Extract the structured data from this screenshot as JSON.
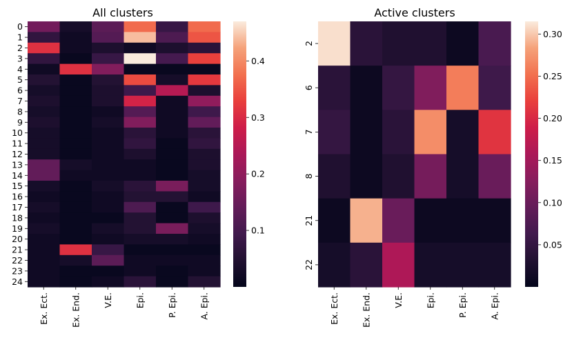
{
  "chart_data": [
    {
      "type": "heatmap",
      "title": "All clusters",
      "x_categories": [
        "Ex. Ect.",
        "Ex. End.",
        "V.E.",
        "Epi.",
        "P. Epi.",
        "A. Epi."
      ],
      "y_categories": [
        "0",
        "1",
        "2",
        "3",
        "4",
        "5",
        "6",
        "7",
        "8",
        "9",
        "10",
        "11",
        "12",
        "13",
        "14",
        "15",
        "16",
        "17",
        "18",
        "19",
        "20",
        "21",
        "22",
        "23",
        "24"
      ],
      "values": [
        [
          0.16,
          0.03,
          0.13,
          0.37,
          0.08,
          0.37
        ],
        [
          0.07,
          0.02,
          0.12,
          0.44,
          0.11,
          0.35
        ],
        [
          0.31,
          0.02,
          0.04,
          0.02,
          0.04,
          0.06
        ],
        [
          0.07,
          0.01,
          0.08,
          0.47,
          0.1,
          0.33
        ],
        [
          0.02,
          0.31,
          0.18,
          0.01,
          0.01,
          0.01
        ],
        [
          0.05,
          0.01,
          0.05,
          0.34,
          0.03,
          0.32
        ],
        [
          0.03,
          0.01,
          0.04,
          0.09,
          0.25,
          0.04
        ],
        [
          0.04,
          0.01,
          0.04,
          0.29,
          0.02,
          0.2
        ],
        [
          0.03,
          0.01,
          0.02,
          0.12,
          0.02,
          0.09
        ],
        [
          0.04,
          0.01,
          0.03,
          0.18,
          0.02,
          0.14
        ],
        [
          0.03,
          0.01,
          0.02,
          0.06,
          0.02,
          0.06
        ],
        [
          0.03,
          0.01,
          0.02,
          0.07,
          0.01,
          0.07
        ],
        [
          0.03,
          0.01,
          0.02,
          0.04,
          0.01,
          0.04
        ],
        [
          0.14,
          0.03,
          0.02,
          0.02,
          0.01,
          0.04
        ],
        [
          0.14,
          0.02,
          0.02,
          0.02,
          0.01,
          0.03
        ],
        [
          0.03,
          0.01,
          0.03,
          0.06,
          0.17,
          0.03
        ],
        [
          0.02,
          0.01,
          0.02,
          0.05,
          0.05,
          0.02
        ],
        [
          0.03,
          0.01,
          0.02,
          0.11,
          0.01,
          0.09
        ],
        [
          0.02,
          0.01,
          0.01,
          0.05,
          0.01,
          0.04
        ],
        [
          0.03,
          0.01,
          0.03,
          0.05,
          0.17,
          0.03
        ],
        [
          0.02,
          0.01,
          0.02,
          0.03,
          0.03,
          0.02
        ],
        [
          0.02,
          0.31,
          0.08,
          0.01,
          0.01,
          0.01
        ],
        [
          0.02,
          0.03,
          0.13,
          0.02,
          0.02,
          0.02
        ],
        [
          0.02,
          0.01,
          0.01,
          0.02,
          0.01,
          0.02
        ],
        [
          0.02,
          0.01,
          0.02,
          0.06,
          0.01,
          0.05
        ]
      ],
      "colorbar": {
        "min": 0.0,
        "max": 0.47,
        "ticks": [
          0.1,
          0.2,
          0.3,
          0.4
        ]
      }
    },
    {
      "type": "heatmap",
      "title": "Active clusters",
      "x_categories": [
        "Ex. Ect.",
        "Ex. End.",
        "V.E.",
        "Epi.",
        "P. Epi.",
        "A. Epi."
      ],
      "y_categories": [
        "2",
        "6",
        "7",
        "8",
        "21",
        "22"
      ],
      "values": [
        [
          0.31,
          0.04,
          0.03,
          0.03,
          0.01,
          0.07
        ],
        [
          0.04,
          0.01,
          0.05,
          0.12,
          0.26,
          0.06
        ],
        [
          0.05,
          0.01,
          0.04,
          0.27,
          0.02,
          0.21
        ],
        [
          0.03,
          0.01,
          0.03,
          0.11,
          0.02,
          0.1
        ],
        [
          0.01,
          0.29,
          0.1,
          0.01,
          0.01,
          0.01
        ],
        [
          0.02,
          0.04,
          0.16,
          0.02,
          0.02,
          0.02
        ]
      ],
      "colorbar": {
        "min": 0.0,
        "max": 0.315,
        "ticks": [
          0.05,
          0.1,
          0.15,
          0.2,
          0.25,
          0.3
        ]
      }
    }
  ]
}
